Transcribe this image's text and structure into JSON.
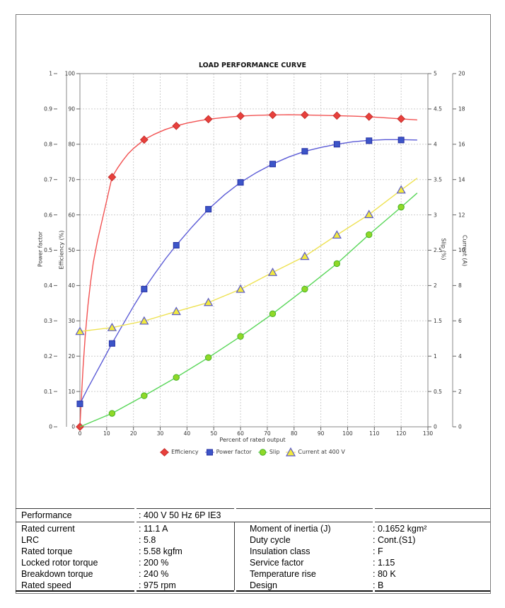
{
  "chart_data": {
    "type": "line",
    "title": "LOAD PERFORMANCE CURVE",
    "xlabel": "Percent of rated output",
    "x_ticks": [
      "0",
      "10",
      "20",
      "30",
      "40",
      "50",
      "60",
      "70",
      "80",
      "90",
      "100",
      "110",
      "120",
      "130"
    ],
    "x_range": [
      0,
      130
    ],
    "grid": true,
    "legend_position": "bottom",
    "axes": {
      "power_factor": {
        "title": "Power factor",
        "range": [
          0,
          1
        ],
        "ticks": [
          "0",
          "0.1",
          "0.2",
          "0.3",
          "0.4",
          "0.5",
          "0.6",
          "0.7",
          "0.8",
          "0.9",
          "1"
        ]
      },
      "efficiency": {
        "title": "Efficiency (%)",
        "range": [
          0,
          100
        ],
        "ticks": [
          "0",
          "10",
          "20",
          "30",
          "40",
          "50",
          "60",
          "70",
          "80",
          "90",
          "100"
        ]
      },
      "slip": {
        "title": "Slip (%)",
        "range": [
          0,
          5
        ],
        "ticks": [
          "0",
          "0.5",
          "1",
          "1.5",
          "2",
          "2.5",
          "3",
          "3.5",
          "4",
          "4.5",
          "5"
        ]
      },
      "current": {
        "title": "Current (A)",
        "range": [
          0,
          20
        ],
        "ticks": [
          "0",
          "2",
          "4",
          "6",
          "8",
          "10",
          "12",
          "14",
          "16",
          "18",
          "20"
        ]
      }
    },
    "series": [
      {
        "name": "Efficiency",
        "axis": "efficiency",
        "marker": "diamond",
        "color": "#f25252",
        "marker_fill": "#e8403c",
        "marker_stroke": "#c62f2c",
        "markers": [
          [
            0,
            0
          ],
          [
            12,
            70.7
          ],
          [
            24,
            81.3
          ],
          [
            36,
            85.2
          ],
          [
            48,
            87.1
          ],
          [
            60,
            88.0
          ],
          [
            72,
            88.3
          ],
          [
            84,
            88.3
          ],
          [
            96,
            88.1
          ],
          [
            108,
            87.8
          ],
          [
            120,
            87.2
          ]
        ],
        "line": [
          [
            0,
            0
          ],
          [
            0.6,
            9
          ],
          [
            1.2,
            17
          ],
          [
            2,
            26
          ],
          [
            3,
            34.5
          ],
          [
            4,
            41
          ],
          [
            5,
            46.5
          ],
          [
            6.5,
            52.5
          ],
          [
            8,
            57.5
          ],
          [
            10,
            64
          ],
          [
            12,
            70.7
          ],
          [
            14,
            73.2
          ],
          [
            16,
            75.4
          ],
          [
            18,
            77.3
          ],
          [
            20,
            78.8
          ],
          [
            24,
            81.3
          ],
          [
            28,
            82.9
          ],
          [
            32,
            84.2
          ],
          [
            36,
            85.2
          ],
          [
            40,
            86.0
          ],
          [
            44,
            86.6
          ],
          [
            48,
            87.1
          ],
          [
            54,
            87.6
          ],
          [
            60,
            88.0
          ],
          [
            66,
            88.2
          ],
          [
            72,
            88.3
          ],
          [
            78,
            88.35
          ],
          [
            84,
            88.3
          ],
          [
            90,
            88.2
          ],
          [
            96,
            88.1
          ],
          [
            102,
            87.95
          ],
          [
            108,
            87.8
          ],
          [
            114,
            87.5
          ],
          [
            120,
            87.2
          ],
          [
            126,
            86.9
          ]
        ]
      },
      {
        "name": "Power factor",
        "axis": "power_factor",
        "marker": "square",
        "color": "#5b5bd6",
        "marker_fill": "#3c55c8",
        "marker_stroke": "#2630a4",
        "markers": [
          [
            0,
            0.065
          ],
          [
            12,
            0.236
          ],
          [
            24,
            0.39
          ],
          [
            36,
            0.514
          ],
          [
            48,
            0.616
          ],
          [
            60,
            0.692
          ],
          [
            72,
            0.744
          ],
          [
            84,
            0.78
          ],
          [
            96,
            0.8
          ],
          [
            108,
            0.81
          ],
          [
            120,
            0.812
          ]
        ],
        "line": [
          [
            0,
            0.065
          ],
          [
            3,
            0.11
          ],
          [
            6,
            0.152
          ],
          [
            9,
            0.194
          ],
          [
            12,
            0.236
          ],
          [
            16,
            0.289
          ],
          [
            20,
            0.341
          ],
          [
            24,
            0.39
          ],
          [
            28,
            0.434
          ],
          [
            32,
            0.476
          ],
          [
            36,
            0.514
          ],
          [
            42,
            0.567
          ],
          [
            48,
            0.616
          ],
          [
            54,
            0.657
          ],
          [
            60,
            0.692
          ],
          [
            66,
            0.72
          ],
          [
            72,
            0.744
          ],
          [
            78,
            0.764
          ],
          [
            84,
            0.78
          ],
          [
            90,
            0.791
          ],
          [
            96,
            0.8
          ],
          [
            102,
            0.807
          ],
          [
            108,
            0.811
          ],
          [
            114,
            0.813
          ],
          [
            120,
            0.813
          ],
          [
            126,
            0.812
          ]
        ]
      },
      {
        "name": "Slip",
        "axis": "slip",
        "marker": "circle",
        "color": "#58d658",
        "marker_fill": "#90d828",
        "marker_stroke": "#48b424",
        "markers": [
          [
            12,
            0.19
          ],
          [
            24,
            0.44
          ],
          [
            36,
            0.7
          ],
          [
            48,
            0.98
          ],
          [
            60,
            1.28
          ],
          [
            72,
            1.6
          ],
          [
            84,
            1.95
          ],
          [
            96,
            2.31
          ],
          [
            108,
            2.72
          ],
          [
            120,
            3.11
          ]
        ],
        "line": [
          [
            0,
            0
          ],
          [
            12,
            0.19
          ],
          [
            24,
            0.44
          ],
          [
            36,
            0.7
          ],
          [
            48,
            0.98
          ],
          [
            60,
            1.28
          ],
          [
            72,
            1.6
          ],
          [
            84,
            1.95
          ],
          [
            96,
            2.31
          ],
          [
            108,
            2.72
          ],
          [
            120,
            3.11
          ],
          [
            126,
            3.31
          ]
        ]
      },
      {
        "name": "Current at 400 V",
        "axis": "current",
        "marker": "triangle",
        "color": "#eee252",
        "marker_fill": "#f2e93e",
        "marker_stroke": "#5a5ac8",
        "markers": [
          [
            0,
            5.4
          ],
          [
            12,
            5.62
          ],
          [
            24,
            5.99
          ],
          [
            36,
            6.53
          ],
          [
            48,
            7.04
          ],
          [
            60,
            7.79
          ],
          [
            72,
            8.74
          ],
          [
            84,
            9.65
          ],
          [
            96,
            10.86
          ],
          [
            108,
            12.02
          ],
          [
            120,
            13.41
          ]
        ],
        "line": [
          [
            0,
            5.4
          ],
          [
            12,
            5.62
          ],
          [
            24,
            5.99
          ],
          [
            36,
            6.53
          ],
          [
            48,
            7.04
          ],
          [
            60,
            7.79
          ],
          [
            72,
            8.74
          ],
          [
            84,
            9.65
          ],
          [
            96,
            10.86
          ],
          [
            108,
            12.02
          ],
          [
            120,
            13.41
          ],
          [
            126,
            14.08
          ]
        ]
      }
    ]
  },
  "table": {
    "performance": {
      "label": "Performance",
      "value": ": 400 V 50 Hz 6P IE3"
    },
    "left_rows": [
      {
        "label": "Rated current",
        "value": ": 11.1 A"
      },
      {
        "label": "LRC",
        "value": ": 5.8"
      },
      {
        "label": "Rated torque",
        "value": ": 5.58 kgfm"
      },
      {
        "label": "Locked rotor torque",
        "value": ": 200 %"
      },
      {
        "label": "Breakdown torque",
        "value": ": 240 %"
      },
      {
        "label": "Rated speed",
        "value": ": 975 rpm"
      }
    ],
    "right_rows": [
      {
        "label": "Moment of inertia (J)",
        "value": ": 0.1652 kgm²"
      },
      {
        "label": "Duty cycle",
        "value": ": Cont.(S1)"
      },
      {
        "label": "Insulation class",
        "value": ": F"
      },
      {
        "label": "Service factor",
        "value": ": 1.15"
      },
      {
        "label": "Temperature rise",
        "value": ": 80 K"
      },
      {
        "label": "Design",
        "value": ": B"
      }
    ]
  }
}
